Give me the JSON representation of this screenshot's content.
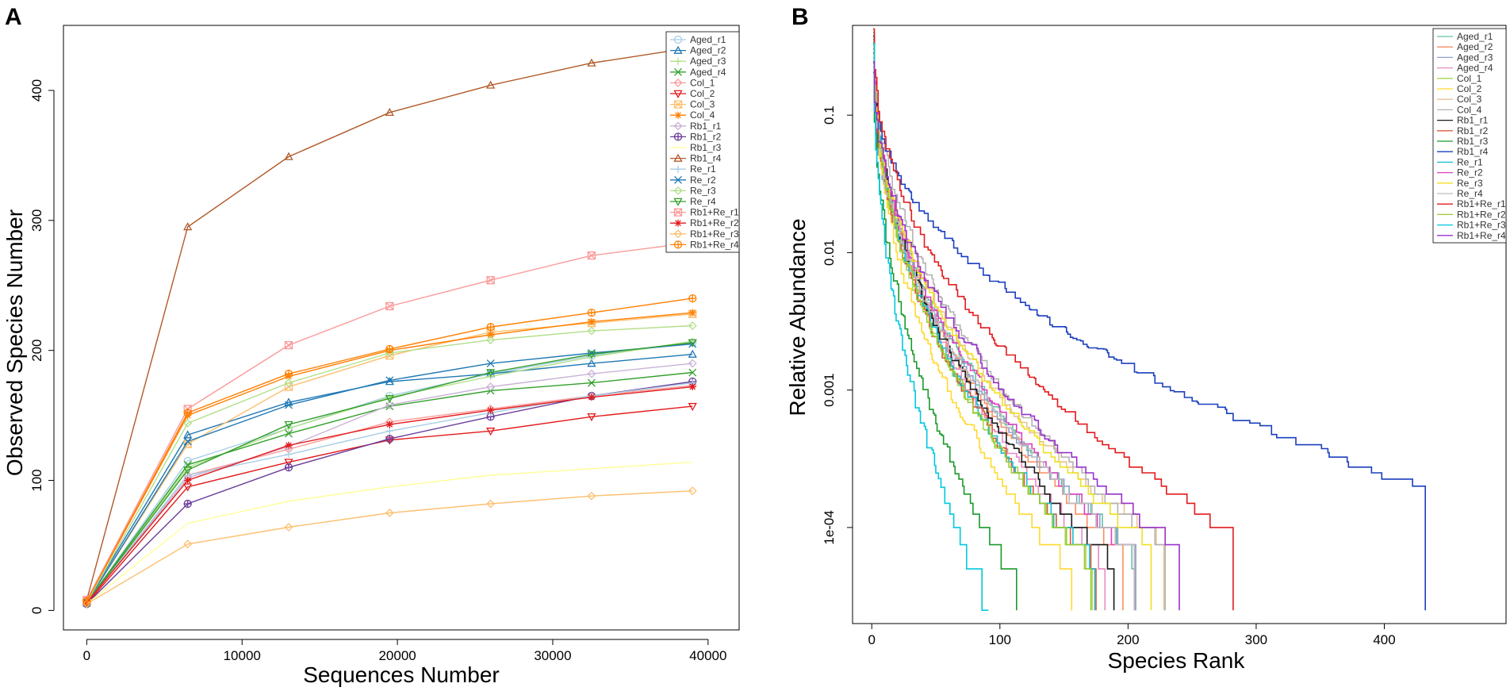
{
  "panels": {
    "a": {
      "letter": "A"
    },
    "b": {
      "letter": "B"
    }
  },
  "chart_data": [
    {
      "type": "line",
      "title": "",
      "xlabel": "Sequences Number",
      "ylabel": "Observed Species Number",
      "xlim": [
        -1500,
        42000
      ],
      "ylim": [
        -15,
        450
      ],
      "xticks": [
        0,
        10000,
        20000,
        30000,
        40000
      ],
      "xtick_labels": [
        "0",
        "10000",
        "20000",
        "30000",
        "40000"
      ],
      "yticks": [
        0,
        100,
        200,
        300,
        400
      ],
      "ytick_labels": [
        "0",
        "100",
        "200",
        "300",
        "400"
      ],
      "legend_position": "top-right",
      "x": [
        0,
        6500,
        13000,
        19500,
        26000,
        32500,
        39000
      ],
      "series": [
        {
          "name": "Aged_r1",
          "color": "#a6cee3",
          "marker": "circle",
          "values": [
            6,
            115,
            140,
            165,
            182,
            196,
            206
          ]
        },
        {
          "name": "Aged_r2",
          "color": "#1f78b4",
          "marker": "triangle-up",
          "values": [
            7,
            135,
            160,
            176,
            182,
            190,
            197
          ]
        },
        {
          "name": "Aged_r3",
          "color": "#b2df8a",
          "marker": "plus",
          "values": [
            6,
            110,
            140,
            164,
            180,
            195,
            207
          ]
        },
        {
          "name": "Aged_r4",
          "color": "#33a02c",
          "marker": "x",
          "values": [
            6,
            112,
            136,
            157,
            169,
            175,
            183
          ]
        },
        {
          "name": "Col_1",
          "color": "#fb9a99",
          "marker": "diamond",
          "values": [
            6,
            104,
            124,
            145,
            155,
            165,
            173
          ]
        },
        {
          "name": "Col_2",
          "color": "#e31a1c",
          "marker": "triangle-down",
          "values": [
            5,
            95,
            114,
            131,
            138,
            149,
            157
          ]
        },
        {
          "name": "Col_3",
          "color": "#fdbf6f",
          "marker": "square-x",
          "values": [
            6,
            128,
            172,
            196,
            214,
            221,
            228
          ]
        },
        {
          "name": "Col_4",
          "color": "#ff7f00",
          "marker": "asterisk",
          "values": [
            7,
            150,
            180,
            200,
            212,
            222,
            229
          ]
        },
        {
          "name": "Rb1_r1",
          "color": "#cab2d6",
          "marker": "diamond",
          "values": [
            6,
            102,
            126,
            158,
            172,
            182,
            190
          ]
        },
        {
          "name": "Rb1_r2",
          "color": "#6a3d9a",
          "marker": "circle-plus",
          "values": [
            5,
            82,
            110,
            132,
            149,
            165,
            176
          ]
        },
        {
          "name": "Rb1_r3",
          "color": "#ffff99",
          "marker": "none",
          "values": [
            5,
            67,
            84,
            95,
            104,
            109,
            114
          ]
        },
        {
          "name": "Rb1_r4",
          "color": "#b15928",
          "marker": "triangle-up",
          "values": [
            8,
            295,
            349,
            383,
            404,
            421,
            433
          ]
        },
        {
          "name": "Re_r1",
          "color": "#a6cee3",
          "marker": "plus",
          "values": [
            6,
            104,
            120,
            138,
            152,
            165,
            175
          ]
        },
        {
          "name": "Re_r2",
          "color": "#1f78b4",
          "marker": "x",
          "values": [
            6,
            130,
            158,
            177,
            190,
            198,
            205
          ]
        },
        {
          "name": "Re_r3",
          "color": "#b2df8a",
          "marker": "diamond",
          "values": [
            6,
            144,
            175,
            198,
            208,
            215,
            219
          ]
        },
        {
          "name": "Re_r4",
          "color": "#33a02c",
          "marker": "triangle-down",
          "values": [
            6,
            108,
            143,
            163,
            183,
            197,
            206
          ]
        },
        {
          "name": "Rb1+Re_r1",
          "color": "#fb9a99",
          "marker": "square-x",
          "values": [
            8,
            155,
            204,
            234,
            254,
            273,
            283
          ]
        },
        {
          "name": "Rb1+Re_r2",
          "color": "#e31a1c",
          "marker": "asterisk",
          "values": [
            6,
            100,
            127,
            143,
            154,
            164,
            172
          ]
        },
        {
          "name": "Rb1+Re_r3",
          "color": "#fdbf6f",
          "marker": "diamond",
          "values": [
            5,
            51,
            64,
            75,
            82,
            88,
            92
          ]
        },
        {
          "name": "Rb1+Re_r4",
          "color": "#ff7f00",
          "marker": "circle-plus",
          "values": [
            7,
            152,
            182,
            201,
            218,
            229,
            240
          ]
        }
      ]
    },
    {
      "type": "line",
      "title": "",
      "xlabel": "Species Rank",
      "ylabel": "Relative Abundance",
      "yscale": "log",
      "xlim": [
        -15,
        495
      ],
      "ylim": [
        2e-05,
        0.45
      ],
      "xticks": [
        0,
        100,
        200,
        300,
        400
      ],
      "xtick_labels": [
        "0",
        "100",
        "200",
        "300",
        "400"
      ],
      "yticks": [
        0.1,
        0.01,
        0.001,
        0.0001
      ],
      "ytick_labels": [
        "0.1",
        "0.01",
        "0.001",
        "1e-04"
      ],
      "legend_position": "top-right",
      "series": [
        {
          "name": "Aged_r1",
          "color": "#66c2a5",
          "n_species": 205,
          "min_abundance": 2.5e-05,
          "end_abundance": 7e-05
        },
        {
          "name": "Aged_r2",
          "color": "#fc8d62",
          "n_species": 196,
          "min_abundance": 2.5e-05,
          "end_abundance": 7e-05
        },
        {
          "name": "Aged_r3",
          "color": "#8da0cb",
          "n_species": 206,
          "min_abundance": 2.5e-05,
          "end_abundance": 7e-05
        },
        {
          "name": "Aged_r4",
          "color": "#e78ac3",
          "n_species": 182,
          "min_abundance": 2.5e-05,
          "end_abundance": 6e-05
        },
        {
          "name": "Col_1",
          "color": "#a6d854",
          "n_species": 172,
          "min_abundance": 2.5e-05,
          "end_abundance": 6e-05
        },
        {
          "name": "Col_2",
          "color": "#ffd92f",
          "n_species": 156,
          "min_abundance": 2.5e-05,
          "end_abundance": 5e-05
        },
        {
          "name": "Col_3",
          "color": "#e5c494",
          "n_species": 228,
          "min_abundance": 2.5e-05,
          "end_abundance": 8e-05
        },
        {
          "name": "Col_4",
          "color": "#b3b3b3",
          "n_species": 229,
          "min_abundance": 2.5e-05,
          "end_abundance": 8e-05
        },
        {
          "name": "Rb1_r1",
          "color": "#1a1a1a",
          "n_species": 189,
          "min_abundance": 2.5e-05,
          "end_abundance": 6e-05
        },
        {
          "name": "Rb1_r2",
          "color": "#d9593d",
          "n_species": 175,
          "min_abundance": 2.5e-05,
          "end_abundance": 6e-05
        },
        {
          "name": "Rb1_r3",
          "color": "#1a9a2a",
          "n_species": 113,
          "min_abundance": 2.5e-05,
          "end_abundance": 4e-05
        },
        {
          "name": "Rb1_r4",
          "color": "#1a3fbf",
          "n_species": 432,
          "min_abundance": 2.5e-05,
          "end_abundance": 0.00021
        },
        {
          "name": "Re_r1",
          "color": "#17becf",
          "n_species": 174,
          "min_abundance": 2.5e-05,
          "end_abundance": 6e-05
        },
        {
          "name": "Re_r2",
          "color": "#e040c0",
          "n_species": 205,
          "min_abundance": 2.5e-05,
          "end_abundance": 7e-05
        },
        {
          "name": "Re_r3",
          "color": "#f0e020",
          "n_species": 218,
          "min_abundance": 2.5e-05,
          "end_abundance": 8e-05
        },
        {
          "name": "Re_r4",
          "color": "#bdbdbd",
          "n_species": 205,
          "min_abundance": 2.5e-05,
          "end_abundance": 7e-05
        },
        {
          "name": "Rb1+Re_r1",
          "color": "#e41a1c",
          "n_species": 282,
          "min_abundance": 2.5e-05,
          "end_abundance": 0.0001
        },
        {
          "name": "Rb1+Re_r2",
          "color": "#9acd32",
          "n_species": 171,
          "min_abundance": 2.5e-05,
          "end_abundance": 6e-05
        },
        {
          "name": "Rb1+Re_r3",
          "color": "#00c8e0",
          "n_species": 91,
          "min_abundance": 2.5e-05,
          "end_abundance": 3e-05
        },
        {
          "name": "Rb1+Re_r4",
          "color": "#9932cc",
          "n_species": 240,
          "min_abundance": 2.5e-05,
          "end_abundance": 8e-05
        }
      ]
    }
  ]
}
